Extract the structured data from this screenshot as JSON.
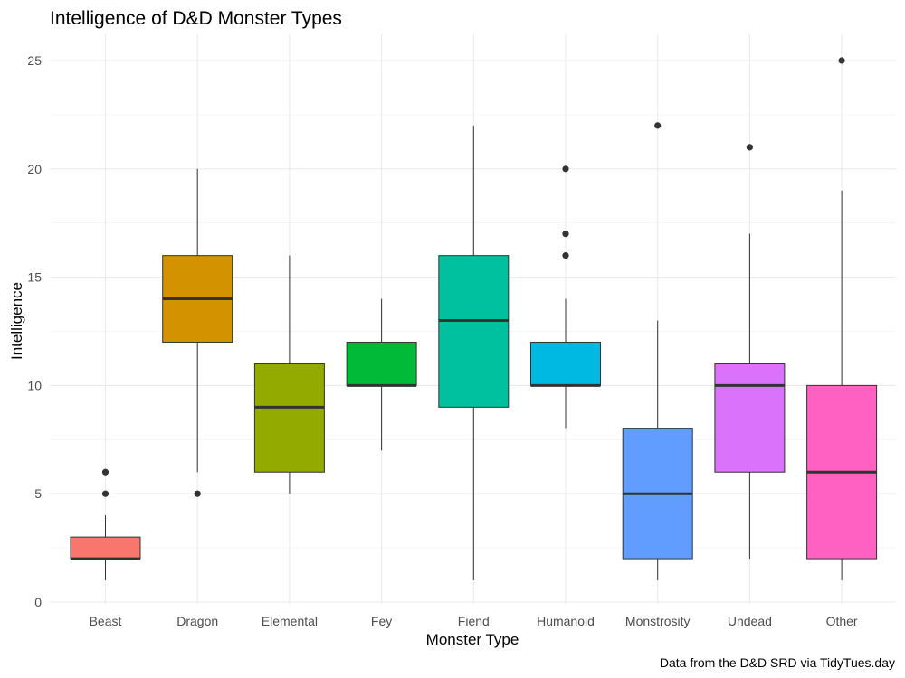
{
  "chart_data": {
    "type": "boxplot",
    "title": "Intelligence of D&D Monster Types",
    "xlabel": "Monster Type",
    "ylabel": "Intelligence",
    "caption": "Data from the D&D SRD via TidyTues.day",
    "ylim": [
      0,
      26
    ],
    "y_ticks": [
      0,
      5,
      10,
      15,
      20,
      25
    ],
    "grid": true,
    "legend": "none",
    "categories": [
      "Beast",
      "Dragon",
      "Elemental",
      "Fey",
      "Fiend",
      "Humanoid",
      "Monstrosity",
      "Undead",
      "Other"
    ],
    "series": [
      {
        "category": "Beast",
        "color": "#F8766D",
        "whisker_low": 1,
        "q1": 2,
        "median": 2,
        "q3": 3,
        "whisker_high": 4,
        "outliers": [
          5,
          6
        ]
      },
      {
        "category": "Dragon",
        "color": "#D39200",
        "whisker_low": 6,
        "q1": 12,
        "median": 14,
        "q3": 16,
        "whisker_high": 20,
        "outliers": [
          5
        ]
      },
      {
        "category": "Elemental",
        "color": "#93AA00",
        "whisker_low": 5,
        "q1": 6,
        "median": 9,
        "q3": 11,
        "whisker_high": 16,
        "outliers": []
      },
      {
        "category": "Fey",
        "color": "#00BA38",
        "whisker_low": 7,
        "q1": 10,
        "median": 10,
        "q3": 12,
        "whisker_high": 14,
        "outliers": []
      },
      {
        "category": "Fiend",
        "color": "#00C19F",
        "whisker_low": 1,
        "q1": 9,
        "median": 13,
        "q3": 16,
        "whisker_high": 22,
        "outliers": []
      },
      {
        "category": "Humanoid",
        "color": "#00B9E3",
        "whisker_low": 8,
        "q1": 10,
        "median": 10,
        "q3": 12,
        "whisker_high": 14,
        "outliers": [
          16,
          17,
          20
        ]
      },
      {
        "category": "Monstrosity",
        "color": "#619CFF",
        "whisker_low": 1,
        "q1": 2,
        "median": 5,
        "q3": 8,
        "whisker_high": 13,
        "outliers": [
          22
        ]
      },
      {
        "category": "Undead",
        "color": "#DB72FB",
        "whisker_low": 2,
        "q1": 6,
        "median": 10,
        "q3": 11,
        "whisker_high": 17,
        "outliers": [
          21
        ]
      },
      {
        "category": "Other",
        "color": "#FF61C3",
        "whisker_low": 1,
        "q1": 2,
        "median": 6,
        "q3": 10,
        "whisker_high": 19,
        "outliers": [
          25
        ]
      }
    ]
  }
}
